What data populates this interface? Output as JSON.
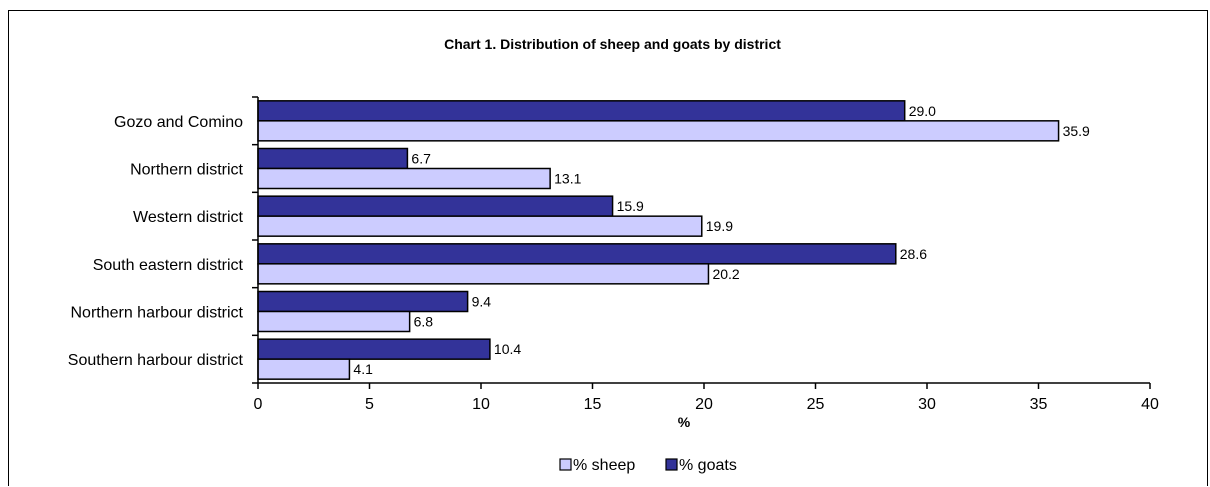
{
  "chart_data": {
    "type": "bar",
    "orientation": "horizontal",
    "title": "Chart 1.  Distribution of sheep and goats by district",
    "xlabel": "%",
    "ylabel": "",
    "xlim": [
      0,
      40
    ],
    "x_ticks": [
      "0",
      "5",
      "10",
      "15",
      "20",
      "25",
      "30",
      "35",
      "40"
    ],
    "categories": [
      "Gozo and Comino",
      "Northern district",
      "Western district",
      "South eastern district",
      "Northern harbour district",
      "Southern harbour district"
    ],
    "series": [
      {
        "name": "% goats",
        "color": "#333399",
        "values": [
          29.0,
          6.7,
          15.9,
          28.6,
          9.4,
          10.4
        ],
        "labels": [
          "29.0",
          "6.7",
          "15.9",
          "28.6",
          "9.4",
          "10.4"
        ]
      },
      {
        "name": "% sheep",
        "color": "#ccccff",
        "values": [
          35.9,
          13.1,
          19.9,
          20.2,
          6.8,
          4.1
        ],
        "labels": [
          "35.9",
          "13.1",
          "19.9",
          "20.2",
          "6.8",
          "4.1"
        ]
      }
    ],
    "legend": {
      "position": "bottom",
      "order": [
        "% sheep",
        "% goats"
      ]
    },
    "grid": false
  }
}
